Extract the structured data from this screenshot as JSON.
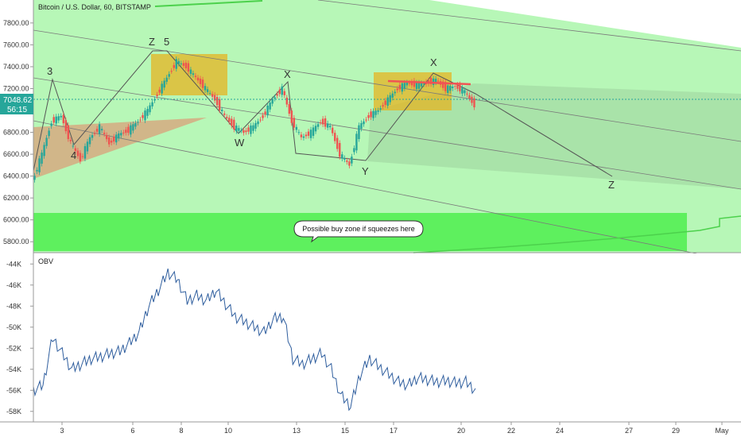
{
  "title": "Bitcoin / U.S. Dollar, 60, BITSTAMP",
  "price_badge": {
    "price": "7048.62",
    "countdown": "56:15",
    "color": "#26a69a"
  },
  "colors": {
    "channel_fill": "#b7f7b7",
    "buy_zone_fill": "#5ef05e",
    "box_fill": "#e6b422",
    "triangle_fill": "#d9a07a",
    "projection_fill": "#9ed39e",
    "trendline_red": "#f05454",
    "obv_line": "#2f5e9e",
    "candle_up": "#26a69a",
    "candle_down": "#ef5350"
  },
  "annotation": {
    "text": "Possible buy zone if squeezes here"
  },
  "wave_labels": [
    "3",
    "4",
    "Z",
    "5",
    "W",
    "X",
    "Y",
    "X",
    "Z"
  ],
  "obv_label": "OBV",
  "chart_data": [
    {
      "type": "line",
      "name": "price",
      "ylim": [
        5700,
        7850
      ],
      "y_ticks": [
        "7800.00",
        "7600.00",
        "7400.00",
        "7200.00",
        "7000.00",
        "6800.00",
        "6600.00",
        "6400.00",
        "6200.00",
        "6000.00",
        "5800.00"
      ],
      "x_ticks": [
        "3",
        "6",
        "8",
        "10",
        "13",
        "15",
        "17",
        "20",
        "22",
        "24",
        "27",
        "29",
        "May"
      ],
      "points": [
        [
          0,
          6350
        ],
        [
          3,
          6600
        ],
        [
          6,
          6900
        ],
        [
          9,
          6950
        ],
        [
          12,
          6700
        ],
        [
          15,
          6550
        ],
        [
          18,
          6750
        ],
        [
          21,
          6850
        ],
        [
          24,
          6700
        ],
        [
          27,
          6780
        ],
        [
          30,
          6820
        ],
        [
          33,
          6900
        ],
        [
          36,
          7000
        ],
        [
          39,
          7150
        ],
        [
          42,
          7300
        ],
        [
          45,
          7450
        ],
        [
          48,
          7400
        ],
        [
          51,
          7300
        ],
        [
          54,
          7200
        ],
        [
          57,
          7100
        ],
        [
          60,
          6950
        ],
        [
          63,
          6850
        ],
        [
          66,
          6800
        ],
        [
          69,
          6850
        ],
        [
          72,
          6950
        ],
        [
          75,
          7100
        ],
        [
          78,
          7200
        ],
        [
          81,
          6900
        ],
        [
          84,
          6750
        ],
        [
          87,
          6800
        ],
        [
          90,
          6900
        ],
        [
          93,
          6850
        ],
        [
          96,
          6600
        ],
        [
          99,
          6500
        ],
        [
          102,
          6850
        ],
        [
          105,
          6950
        ],
        [
          108,
          7000
        ],
        [
          111,
          7100
        ],
        [
          114,
          7200
        ],
        [
          117,
          7250
        ],
        [
          120,
          7230
        ],
        [
          123,
          7250
        ],
        [
          126,
          7280
        ],
        [
          129,
          7200
        ],
        [
          132,
          7220
        ],
        [
          135,
          7170
        ],
        [
          138,
          7048
        ]
      ]
    },
    {
      "type": "line",
      "name": "OBV",
      "ylim": [
        -59000,
        -43000
      ],
      "y_ticks": [
        "-44K",
        "-46K",
        "-48K",
        "-50K",
        "-52K",
        "-54K",
        "-56K",
        "-58K"
      ],
      "points": [
        [
          0,
          -56000
        ],
        [
          3,
          -55500
        ],
        [
          6,
          -51000
        ],
        [
          9,
          -52500
        ],
        [
          12,
          -54000
        ],
        [
          15,
          -53500
        ],
        [
          18,
          -53000
        ],
        [
          21,
          -52800
        ],
        [
          24,
          -52500
        ],
        [
          27,
          -52300
        ],
        [
          30,
          -51500
        ],
        [
          33,
          -50500
        ],
        [
          36,
          -48000
        ],
        [
          39,
          -46500
        ],
        [
          42,
          -44800
        ],
        [
          45,
          -45500
        ],
        [
          48,
          -47500
        ],
        [
          51,
          -47000
        ],
        [
          54,
          -47500
        ],
        [
          57,
          -46500
        ],
        [
          60,
          -47800
        ],
        [
          63,
          -49000
        ],
        [
          66,
          -49500
        ],
        [
          69,
          -50000
        ],
        [
          72,
          -50500
        ],
        [
          75,
          -49200
        ],
        [
          78,
          -49000
        ],
        [
          81,
          -53000
        ],
        [
          84,
          -53500
        ],
        [
          87,
          -53000
        ],
        [
          90,
          -52500
        ],
        [
          93,
          -54000
        ],
        [
          96,
          -56500
        ],
        [
          99,
          -57500
        ],
        [
          102,
          -54500
        ],
        [
          105,
          -53000
        ],
        [
          108,
          -53800
        ],
        [
          111,
          -54500
        ],
        [
          114,
          -55200
        ],
        [
          117,
          -55500
        ],
        [
          120,
          -54800
        ],
        [
          123,
          -55000
        ],
        [
          126,
          -55200
        ],
        [
          129,
          -55100
        ],
        [
          132,
          -55300
        ],
        [
          135,
          -55200
        ],
        [
          138,
          -56000
        ]
      ]
    }
  ]
}
